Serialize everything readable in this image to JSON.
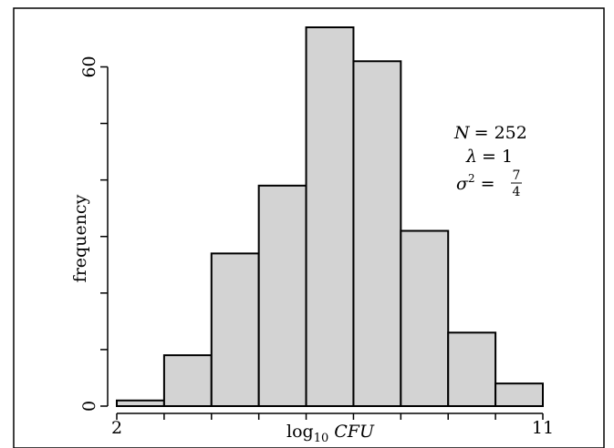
{
  "chart_data": {
    "type": "bar",
    "title": "",
    "xlabel": "log10 CFU",
    "xlabel_base": "log",
    "xlabel_sub": "10",
    "xlabel_var": "CFU",
    "ylabel": "frequency",
    "bins": [
      {
        "x0": 2,
        "x1": 3,
        "count": 1
      },
      {
        "x0": 3,
        "x1": 4,
        "count": 9
      },
      {
        "x0": 4,
        "x1": 5,
        "count": 27
      },
      {
        "x0": 5,
        "x1": 6,
        "count": 39
      },
      {
        "x0": 6,
        "x1": 7,
        "count": 67
      },
      {
        "x0": 7,
        "x1": 8,
        "count": 61
      },
      {
        "x0": 8,
        "x1": 9,
        "count": 31
      },
      {
        "x0": 9,
        "x1": 10,
        "count": 13
      },
      {
        "x0": 10,
        "x1": 11,
        "count": 4
      }
    ],
    "xlim": [
      2,
      11
    ],
    "ylim": [
      0,
      67
    ],
    "x_tick_positions": [
      2,
      3,
      4,
      5,
      6,
      7,
      8,
      9,
      10,
      11
    ],
    "x_tick_labels": [
      {
        "value": 2,
        "label": "2"
      },
      {
        "value": 11,
        "label": "11"
      }
    ],
    "y_tick_positions": [
      0,
      10,
      20,
      30,
      40,
      50,
      60
    ],
    "y_tick_labels": [
      {
        "value": 0,
        "label": "0"
      },
      {
        "value": 60,
        "label": "60"
      }
    ],
    "annotation": {
      "n_lhs": "N",
      "n_eq": "= 252",
      "lambda_lhs": "λ",
      "lambda_eq": "= 1",
      "sigma_lhs": "σ",
      "sigma_sup": "2",
      "sigma_eq": "=",
      "sigma_num": "7",
      "sigma_den": "4"
    },
    "grid": false,
    "colors": {
      "bar_fill": "#d3d3d3",
      "bar_stroke": "#000000",
      "frame": "#000000"
    }
  }
}
